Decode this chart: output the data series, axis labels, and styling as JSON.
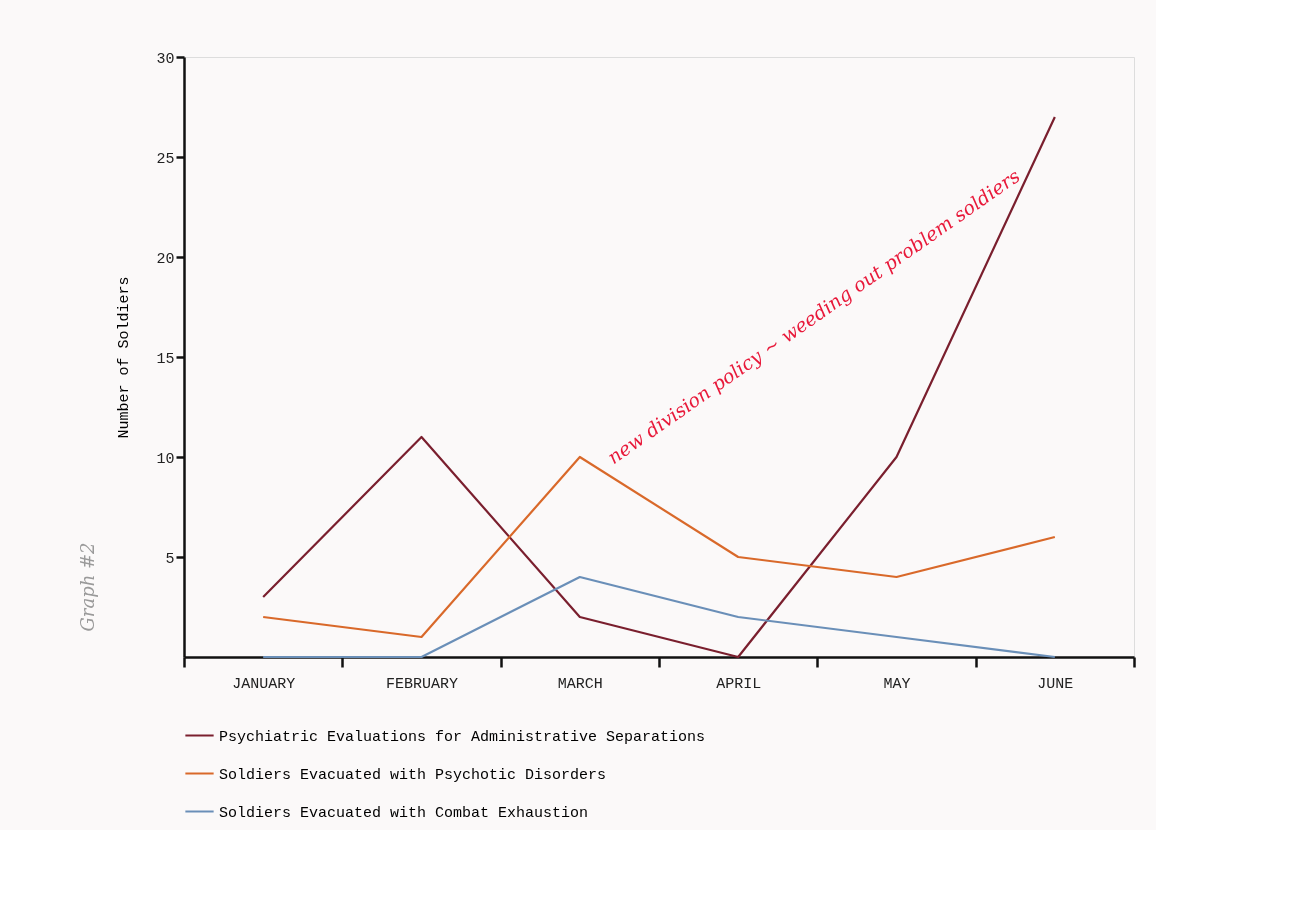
{
  "chart_data": {
    "type": "line",
    "ylabel": "Number of Soldiers",
    "categories": [
      "JANUARY",
      "FEBRUARY",
      "MARCH",
      "APRIL",
      "MAY",
      "JUNE"
    ],
    "series": [
      {
        "name": "Psychiatric Evaluations for Administrative Separations",
        "color": "#7a1f2e",
        "values": [
          3,
          11,
          2,
          0,
          10,
          27
        ]
      },
      {
        "name": "Soldiers Evacuated with Psychotic Disorders",
        "color": "#d9692a",
        "values": [
          2,
          1,
          10,
          5,
          4,
          6
        ]
      },
      {
        "name": "Soldiers Evacuated with Combat Exhaustion",
        "color": "#6a8fb8",
        "values": [
          0,
          0,
          4,
          2,
          1,
          0
        ]
      }
    ],
    "ylim": [
      0,
      30
    ],
    "yticks": [
      5,
      10,
      15,
      20,
      25,
      30
    ],
    "annotations": [
      "Graph #2",
      "new division policy ~ weeding out problem soldiers"
    ],
    "grid": false,
    "legend": "bottom",
    "marker": "none",
    "line_style": "solid"
  }
}
